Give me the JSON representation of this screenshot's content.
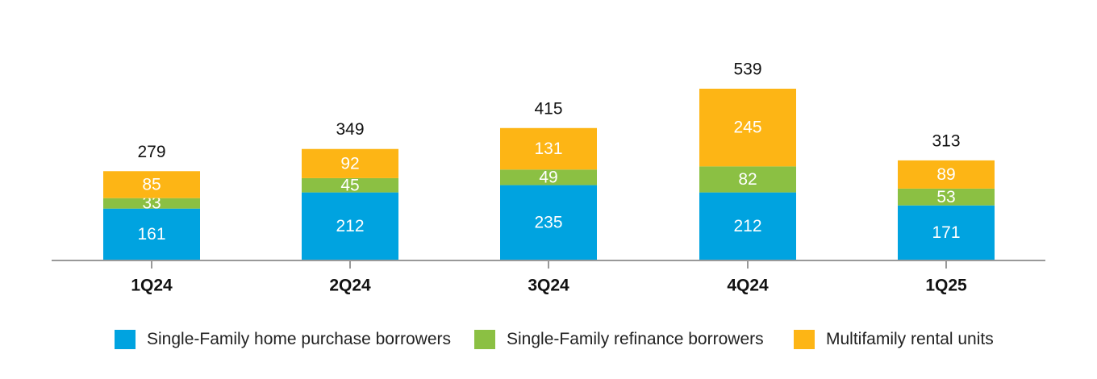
{
  "chart_data": {
    "type": "bar",
    "stacked": true,
    "categories": [
      "1Q24",
      "2Q24",
      "3Q24",
      "4Q24",
      "1Q25"
    ],
    "series": [
      {
        "name": "Single-Family home purchase borrowers",
        "values": [
          161,
          212,
          235,
          212,
          171
        ],
        "color": "#00a3e0"
      },
      {
        "name": "Single-Family refinance borrowers",
        "values": [
          33,
          45,
          49,
          82,
          53
        ],
        "color": "#8bc043"
      },
      {
        "name": "Multifamily rental units",
        "values": [
          85,
          92,
          131,
          245,
          89
        ],
        "color": "#fdb515"
      }
    ],
    "totals": [
      279,
      349,
      415,
      539,
      313
    ],
    "title": "",
    "xlabel": "",
    "ylabel": "",
    "grid": false,
    "legend_position": "bottom"
  }
}
